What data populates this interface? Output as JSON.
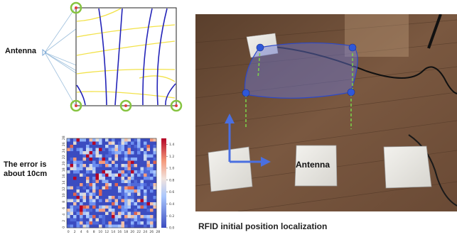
{
  "left_panel": {
    "antenna_label": "Antenna",
    "error_label_line1": "The error is",
    "error_label_line2": "about 10cm"
  },
  "heatmap": {
    "grid_size": 28,
    "x_tick_labels": [
      "0",
      "2",
      "4",
      "6",
      "8",
      "10",
      "12",
      "14",
      "16",
      "18",
      "20",
      "22",
      "24",
      "26",
      "28"
    ],
    "y_tick_labels": [
      "0",
      "2",
      "4",
      "6",
      "8",
      "10",
      "12",
      "14",
      "16",
      "18",
      "20",
      "22",
      "24",
      "26",
      "28"
    ],
    "colorbar_ticks": [
      "0.0",
      "0.2",
      "0.4",
      "0.6",
      "0.8",
      "1.0",
      "1.2",
      "1.4"
    ],
    "colorbar_max": 1.5
  },
  "photo": {
    "antenna_tag": "Antenna",
    "caption": "RFID initial position localization"
  },
  "colors": {
    "marker_ring": "#86c440",
    "marker_dot": "#e23b3b",
    "hyperbola_blue": "#2323b8",
    "hyperbola_yellow": "#f2e24a",
    "region_fill": "#6b78d6",
    "region_edge": "#2d49c8",
    "dashed_line": "#7bd04a",
    "arrow_blue": "#4a6fe0"
  }
}
